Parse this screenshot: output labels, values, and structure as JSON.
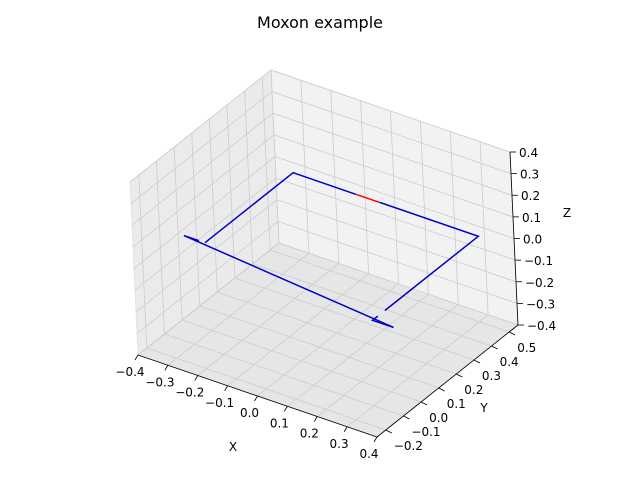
{
  "chart_data": {
    "type": "line",
    "projection": "3d",
    "title": "Moxon example",
    "xlabel": "X",
    "ylabel": "Y",
    "zlabel": "Z",
    "xlim": [
      -0.4,
      0.4
    ],
    "ylim": [
      -0.25,
      0.55
    ],
    "zlim": [
      -0.4,
      0.4
    ],
    "xticks": [
      "−0.4",
      "−0.3",
      "−0.2",
      "−0.1",
      "0.0",
      "0.1",
      "0.2",
      "0.3",
      "0.4"
    ],
    "yticks": [
      "−0.2",
      "−0.1",
      "0.0",
      "0.1",
      "0.2",
      "0.3",
      "0.4",
      "0.5"
    ],
    "zticks": [
      "−0.4",
      "−0.3",
      "−0.2",
      "−0.1",
      "0.0",
      "0.1",
      "0.2",
      "0.3",
      "0.4"
    ],
    "grid": true,
    "series": [
      {
        "color": "#0000cc",
        "segments": [
          [
            [
              -0.38,
              0.0,
              0.0
            ],
            [
              -0.33,
              0.0,
              0.0
            ]
          ],
          [
            [
              -0.31,
              0.0,
              0.0
            ],
            [
              -0.31,
              0.5,
              0.0
            ],
            [
              -0.1,
              0.5,
              0.0
            ]
          ],
          [
            [
              -0.02,
              0.5,
              0.0
            ],
            [
              0.31,
              0.5,
              0.0
            ],
            [
              0.31,
              -0.03,
              0.0
            ]
          ],
          [
            [
              0.31,
              -0.07,
              0.0
            ],
            [
              0.31,
              -0.1,
              0.0
            ],
            [
              0.38,
              -0.1,
              0.0
            ]
          ],
          [
            [
              0.38,
              -0.1,
              0.0
            ],
            [
              -0.38,
              0.0,
              0.0
            ]
          ]
        ]
      },
      {
        "color": "#ff0000",
        "segments": [
          [
            [
              -0.1,
              0.5,
              0.0
            ],
            [
              -0.02,
              0.5,
              0.0
            ]
          ]
        ]
      }
    ]
  }
}
